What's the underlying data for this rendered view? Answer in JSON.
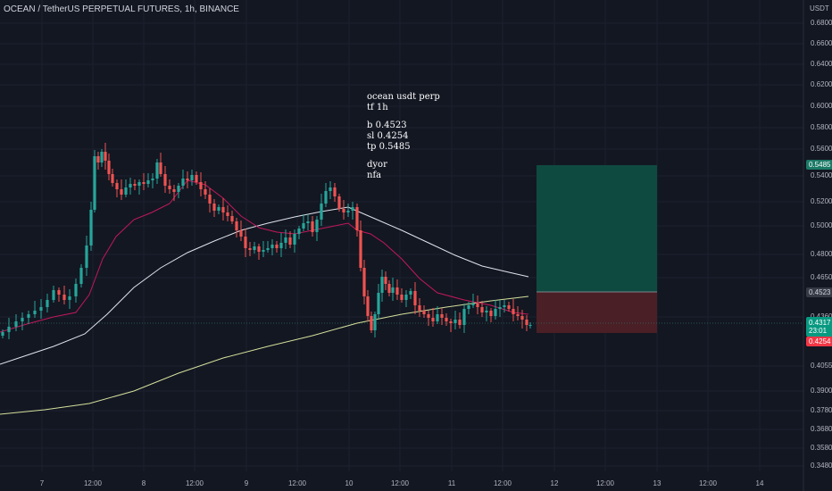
{
  "header": {
    "symbol_line": "OCEAN / TetherUS PERPETUAL FUTURES, 1h, BINANCE"
  },
  "price_axis": {
    "unit": "USDT",
    "ticks": [
      "0.6800",
      "0.6600",
      "0.6400",
      "0.6200",
      "0.6000",
      "0.5800",
      "0.5600",
      "0.5400",
      "0.5200",
      "0.5000",
      "0.4800",
      "0.4650",
      "0.4360",
      "0.4055",
      "0.3900",
      "0.3780",
      "0.3680",
      "0.3580",
      "0.3480"
    ],
    "tag_tp": "0.5485",
    "tag_entry": "0.4523",
    "tag_last_price": "0.4317",
    "tag_last_countdown": "23:01",
    "tag_sl": "0.4254"
  },
  "time_axis": {
    "ticks": [
      "7",
      "12:00",
      "8",
      "12:00",
      "9",
      "12:00",
      "10",
      "12:00",
      "11",
      "12:00",
      "12",
      "12:00",
      "13",
      "12:00",
      "14"
    ]
  },
  "trade_note": {
    "lines": [
      "ocean usdt perp",
      "tf 1h",
      "",
      "b 0.4523",
      "sl 0.4254",
      "tp 0.5485",
      "",
      "dyor",
      "nfa"
    ]
  },
  "position_tool": {
    "entry": 0.4523,
    "stop_loss": 0.4254,
    "take_profit": 0.5485
  },
  "colors": {
    "background": "#131722",
    "up_candle": "#26a69a",
    "down_candle": "#ef5350",
    "ma_short": "#c2185b",
    "ma_mid": "#e0e3eb",
    "ma_long": "#d4e09b",
    "profit_zone": "#0e4a40",
    "loss_zone": "#4a1f26"
  }
}
